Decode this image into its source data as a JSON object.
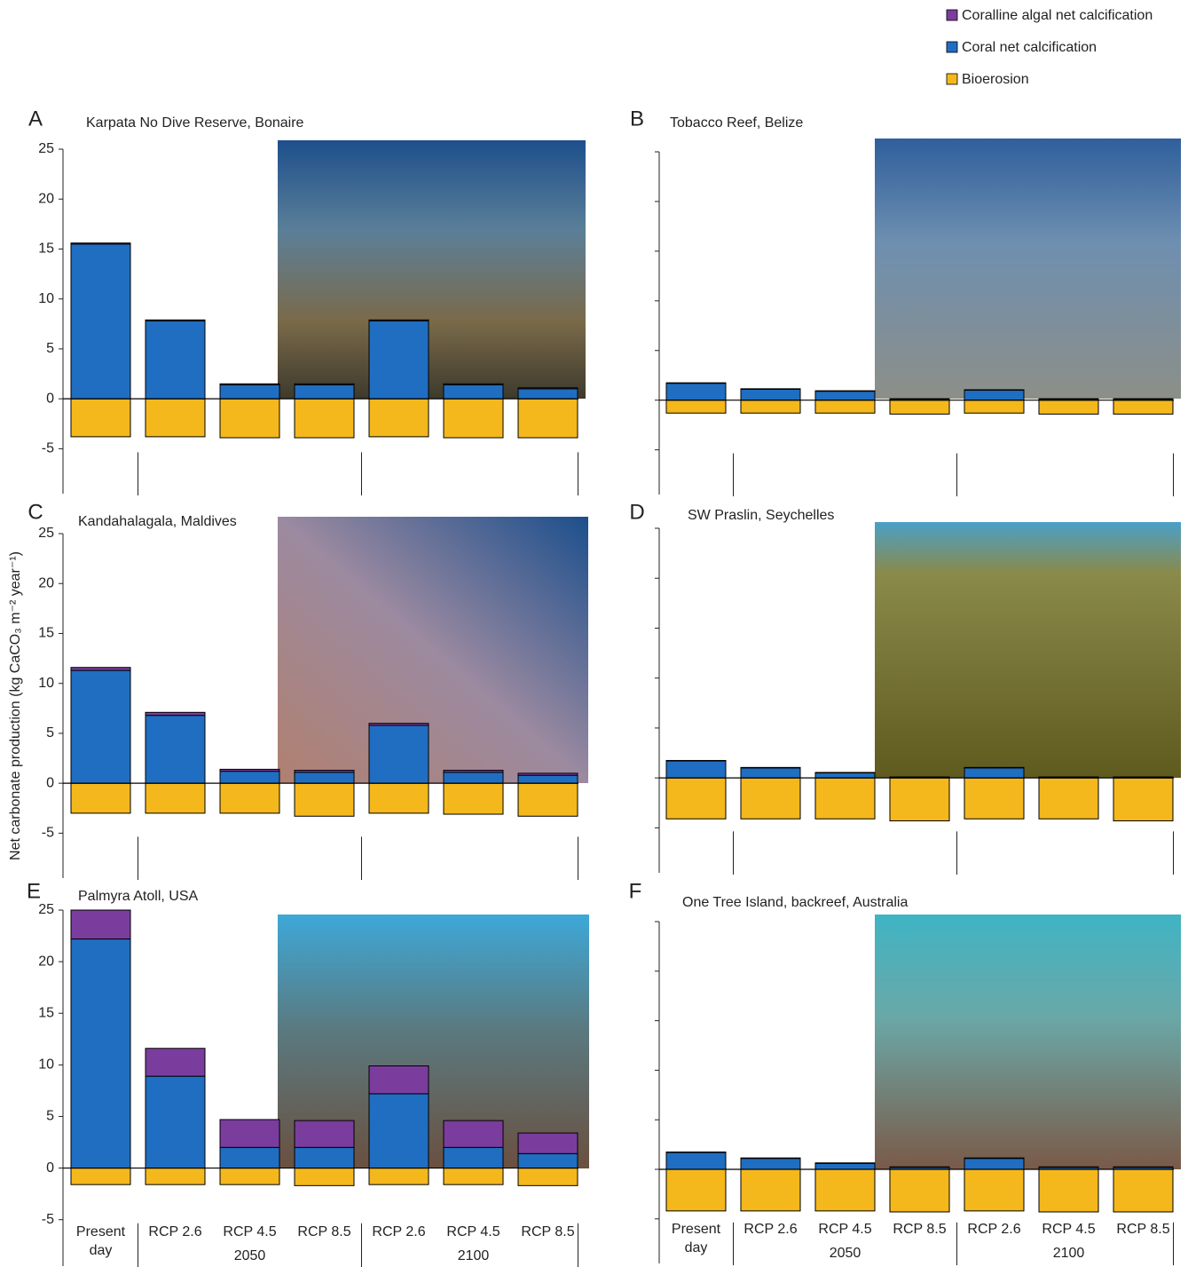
{
  "legend": [
    {
      "name": "Coralline algal net calcification",
      "color": "#7a3d9e"
    },
    {
      "name": "Coral net calcification",
      "color": "#1f6ec2"
    },
    {
      "name": "Bioerosion",
      "color": "#f4b81c"
    }
  ],
  "y_label": "Net carbonate production (kg CaCO₃ m⁻² year⁻¹)",
  "chart_data": [
    {
      "type": "stacked-bar",
      "letter": "A",
      "title": "Karpata No Dive Reserve, Bonaire",
      "categories": [
        null,
        null,
        null,
        null,
        null,
        null,
        null
      ],
      "series": [
        {
          "values": [
            0.1,
            0.1,
            0.1,
            0.1,
            0.1,
            0.1,
            0.1
          ]
        },
        {
          "values": [
            15.5,
            7.8,
            1.4,
            1.4,
            7.8,
            1.4,
            1.0
          ]
        },
        {
          "values": [
            -3.8,
            -3.8,
            -3.9,
            -3.9,
            -3.8,
            -3.9,
            -3.9
          ]
        }
      ],
      "ylim": [
        -9.5,
        25
      ],
      "yticks": [
        -5,
        0,
        5,
        10,
        15,
        20,
        25
      ],
      "tick_labels": true
    },
    {
      "type": "stacked-bar",
      "letter": "B",
      "title": "Tobacco Reef, Belize",
      "categories": [
        null,
        null,
        null,
        null,
        null,
        null,
        null
      ],
      "series": [
        {
          "values": [
            0.05,
            0.05,
            0.05,
            0.05,
            0.05,
            0.05,
            0.05
          ]
        },
        {
          "values": [
            1.7,
            1.1,
            0.9,
            0.1,
            1.0,
            0.1,
            0.1
          ]
        },
        {
          "values": [
            -1.3,
            -1.3,
            -1.3,
            -1.4,
            -1.3,
            -1.4,
            -1.4
          ]
        }
      ],
      "ylim": [
        -9.5,
        25
      ],
      "yticks": [
        -5,
        0,
        5,
        10,
        15,
        20,
        25
      ],
      "tick_labels": false
    },
    {
      "type": "stacked-bar",
      "letter": "C",
      "title": "Kandahalagala, Maldives",
      "categories": [
        null,
        null,
        null,
        null,
        null,
        null,
        null
      ],
      "series": [
        {
          "values": [
            0.3,
            0.3,
            0.2,
            0.2,
            0.2,
            0.2,
            0.2
          ]
        },
        {
          "values": [
            11.3,
            6.8,
            1.2,
            1.1,
            5.8,
            1.1,
            0.8
          ]
        },
        {
          "values": [
            -3.0,
            -3.0,
            -3.0,
            -3.3,
            -3.0,
            -3.1,
            -3.3
          ]
        }
      ],
      "ylim": [
        -9.5,
        25
      ],
      "yticks": [
        -5,
        0,
        5,
        10,
        15,
        20,
        25
      ],
      "tick_labels": true
    },
    {
      "type": "stacked-bar",
      "letter": "D",
      "title": "SW Praslin, Seychelles",
      "categories": [
        null,
        null,
        null,
        null,
        null,
        null,
        null
      ],
      "series": [
        {
          "values": [
            0.05,
            0.05,
            0.05,
            0.05,
            0.05,
            0.05,
            0.05
          ]
        },
        {
          "values": [
            1.7,
            1.0,
            0.5,
            0.05,
            1.0,
            0.05,
            0.05
          ]
        },
        {
          "values": [
            -4.1,
            -4.1,
            -4.1,
            -4.3,
            -4.1,
            -4.1,
            -4.3
          ]
        }
      ],
      "ylim": [
        -9.5,
        25
      ],
      "yticks": [
        -5,
        0,
        5,
        10,
        15,
        20,
        25
      ],
      "tick_labels": false
    },
    {
      "type": "stacked-bar",
      "letter": "E",
      "title": "Palmyra Atoll, USA",
      "categories": [
        "Present day",
        "RCP 2.6",
        "RCP 4.5",
        "RCP 8.5",
        "RCP 2.6",
        "RCP 4.5",
        "RCP 8.5"
      ],
      "groups": [
        "2050",
        "2100"
      ],
      "series": [
        {
          "values": [
            2.8,
            2.7,
            2.7,
            2.6,
            2.7,
            2.6,
            2.0
          ]
        },
        {
          "values": [
            22.2,
            8.9,
            2.0,
            2.0,
            7.2,
            2.0,
            1.4
          ]
        },
        {
          "values": [
            -1.6,
            -1.6,
            -1.6,
            -1.7,
            -1.6,
            -1.6,
            -1.7
          ]
        }
      ],
      "ylim": [
        -9.5,
        25
      ],
      "yticks": [
        -5,
        0,
        5,
        10,
        15,
        20,
        25
      ],
      "tick_labels": true
    },
    {
      "type": "stacked-bar",
      "letter": "F",
      "title": "One Tree Island, backreef, Australia",
      "categories": [
        "Present day",
        "RCP 2.6",
        "RCP 4.5",
        "RCP 8.5",
        "RCP 2.6",
        "RCP 4.5",
        "RCP 8.5"
      ],
      "groups": [
        "2050",
        "2100"
      ],
      "series": [
        {
          "values": [
            0.05,
            0.05,
            0.05,
            0.05,
            0.05,
            0.05,
            0.05
          ]
        },
        {
          "values": [
            1.7,
            1.1,
            0.6,
            0.2,
            1.1,
            0.2,
            0.2
          ]
        },
        {
          "values": [
            -4.2,
            -4.2,
            -4.2,
            -4.3,
            -4.2,
            -4.3,
            -4.3
          ]
        }
      ],
      "ylim": [
        -9.5,
        25
      ],
      "yticks": [
        -5,
        0,
        5,
        10,
        15,
        20,
        25
      ],
      "tick_labels": false
    }
  ]
}
